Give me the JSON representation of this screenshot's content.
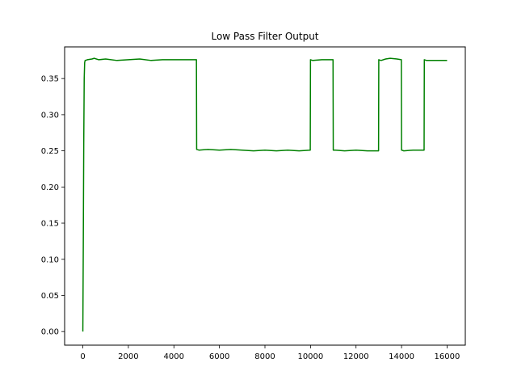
{
  "chart_data": {
    "type": "line",
    "title": "Low Pass Filter Output",
    "xlabel": "",
    "ylabel": "",
    "xlim": [
      -800,
      16800
    ],
    "ylim": [
      -0.0188,
      0.3938
    ],
    "xticks": [
      0,
      2000,
      4000,
      6000,
      8000,
      10000,
      12000,
      14000,
      16000
    ],
    "xtick_labels": [
      "0",
      "2000",
      "4000",
      "6000",
      "8000",
      "10000",
      "12000",
      "14000",
      "16000"
    ],
    "yticks": [
      0.0,
      0.05,
      0.1,
      0.15,
      0.2,
      0.25,
      0.3,
      0.35
    ],
    "ytick_labels": [
      "0.00",
      "0.05",
      "0.10",
      "0.15",
      "0.20",
      "0.25",
      "0.30",
      "0.35"
    ],
    "grid": false,
    "legend": "none",
    "series": [
      {
        "color": "#008000",
        "x": [
          0,
          20,
          40,
          60,
          80,
          100,
          200,
          400,
          500,
          700,
          1000,
          1500,
          2000,
          2500,
          3000,
          3500,
          4000,
          4500,
          4990,
          5000,
          5100,
          5500,
          6000,
          6500,
          7000,
          7500,
          8000,
          8500,
          9000,
          9500,
          9990,
          10000,
          10100,
          10500,
          10990,
          11000,
          11100,
          11500,
          12000,
          12500,
          12990,
          13000,
          13100,
          13300,
          13500,
          13800,
          13990,
          14000,
          14100,
          14500,
          14990,
          15000,
          15100,
          15500,
          16000
        ],
        "values": [
          0.0,
          0.12,
          0.26,
          0.35,
          0.372,
          0.375,
          0.376,
          0.377,
          0.378,
          0.376,
          0.377,
          0.375,
          0.376,
          0.377,
          0.375,
          0.376,
          0.376,
          0.376,
          0.376,
          0.252,
          0.251,
          0.252,
          0.251,
          0.252,
          0.251,
          0.25,
          0.251,
          0.25,
          0.251,
          0.25,
          0.251,
          0.376,
          0.375,
          0.376,
          0.376,
          0.251,
          0.251,
          0.25,
          0.251,
          0.25,
          0.25,
          0.376,
          0.375,
          0.377,
          0.378,
          0.377,
          0.376,
          0.251,
          0.25,
          0.251,
          0.251,
          0.376,
          0.375,
          0.375,
          0.375
        ]
      }
    ]
  }
}
